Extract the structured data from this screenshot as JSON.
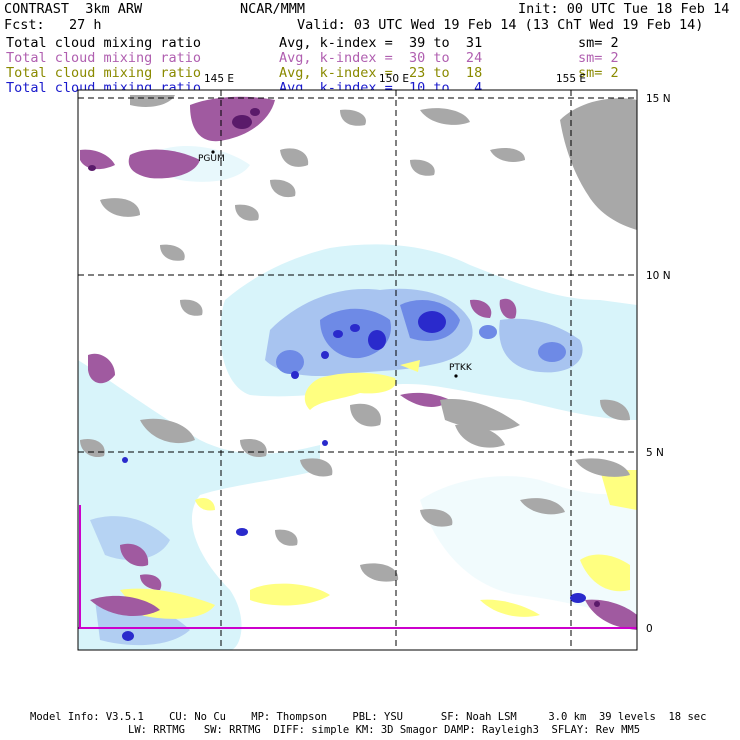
{
  "header": {
    "left1": "CONTRAST  3km ARW",
    "center1": "NCAR/MMM",
    "right1": "Init: 00 UTC Tue 18 Feb 14",
    "left2": "Fcst:   27 h",
    "right2": "Valid: 03 UTC Wed 19 Feb 14 (13 ChT Wed 19 Feb 14)"
  },
  "fields": [
    {
      "name": "Total cloud mixing ratio",
      "avg": "Avg, k-index =  39 to  31",
      "sm": "sm= 2",
      "color": "#000000"
    },
    {
      "name": "Total cloud mixing ratio",
      "avg": "Avg, k-index =  30 to  24",
      "sm": "sm= 2",
      "color": "#b05fb0"
    },
    {
      "name": "Total cloud mixing ratio",
      "avg": "Avg, k-index =  23 to  18",
      "sm": "sm= 2",
      "color": "#8a8a00"
    },
    {
      "name": "Total cloud mixing ratio",
      "avg": "Avg, k-index =  10 to   4",
      "sm": "",
      "color": "#1a1acc"
    }
  ],
  "map": {
    "lon_labels": [
      "145 E",
      "150 E",
      "155 E"
    ],
    "lat_labels": [
      "15 N",
      "10 N",
      "5 N",
      "0"
    ],
    "stations": [
      {
        "id": "PGUM"
      },
      {
        "id": "PTKK"
      }
    ],
    "colors": {
      "land": "#a8a8a8",
      "purple": "#a05aa0",
      "purple_dark": "#5a1a6a",
      "yellow": "#ffff80",
      "cyan_light": "#d8f4fa",
      "blue_light": "#a8c4f0",
      "blue_mid": "#6e8ae6",
      "blue_dark": "#2a2acc"
    }
  },
  "footer": {
    "line1": "Model Info: V3.5.1    CU: No Cu    MP: Thompson    PBL: YSU      SF: Noah LSM     3.0 km  39 levels  18 sec",
    "line2": "LW: RRTMG   SW: RRTMG  DIFF: simple KM: 3D Smagor DAMP: Rayleigh3  SFLAY: Rev MM5"
  }
}
